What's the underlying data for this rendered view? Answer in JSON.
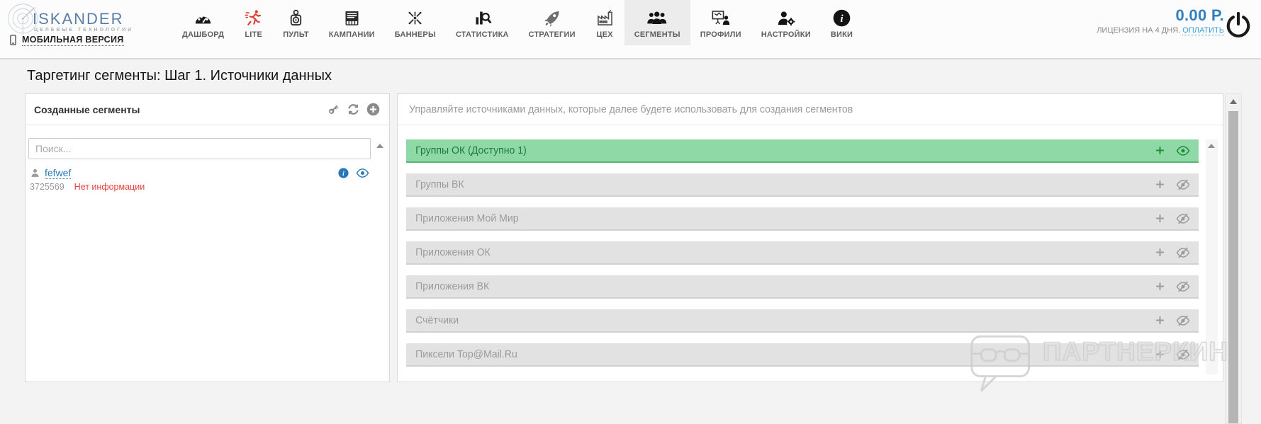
{
  "header": {
    "logo": {
      "title": "ISKANDER",
      "subtitle": "ЦЕЛЕВЫЕ ТЕХНОЛОГИИ",
      "mobile_link": "МОБИЛЬНАЯ ВЕРСИЯ"
    },
    "nav": [
      {
        "label": "ДАШБОРД",
        "icon": "gauge-icon",
        "active": false
      },
      {
        "label": "LITE",
        "icon": "runner-icon",
        "active": false
      },
      {
        "label": "ПУЛЬТ",
        "icon": "joystick-icon",
        "active": false
      },
      {
        "label": "КАМПАНИИ",
        "icon": "campaigns-icon",
        "active": false
      },
      {
        "label": "БАННЕРЫ",
        "icon": "banners-icon",
        "active": false
      },
      {
        "label": "СТАТИСТИКА",
        "icon": "statistics-icon",
        "active": false
      },
      {
        "label": "СТРАТЕГИИ",
        "icon": "rocket-icon",
        "active": false
      },
      {
        "label": "ЦЕХ",
        "icon": "factory-icon",
        "active": false
      },
      {
        "label": "СЕГМЕНТЫ",
        "icon": "segments-icon",
        "active": true
      },
      {
        "label": "ПРОФИЛИ",
        "icon": "profiles-icon",
        "active": false
      },
      {
        "label": "НАСТРОЙКИ",
        "icon": "settings-icon",
        "active": false
      },
      {
        "label": "ВИКИ",
        "icon": "wiki-icon",
        "active": false
      }
    ],
    "balance": "0.00 Р.",
    "license_text": "ЛИЦЕНЗИЯ НА 4 ДНЯ.",
    "pay_link": "ОПЛАТИТЬ"
  },
  "page_title": "Таргетинг сегменты: Шаг 1. Источники данных",
  "segments_panel": {
    "title": "Созданные сегменты",
    "search_placeholder": "Поиск...",
    "items": [
      {
        "name": "fefwef",
        "id": "3725569",
        "status": "Нет информации"
      }
    ]
  },
  "sources_panel": {
    "description": "Управляйте источниками данных, которые далее будете использовать для создания сегментов",
    "rows": [
      {
        "label": "Группы ОК (Доступно 1)",
        "enabled": true
      },
      {
        "label": "Группы ВК",
        "enabled": false
      },
      {
        "label": "Приложения Мой Мир",
        "enabled": false
      },
      {
        "label": "Приложения ОК",
        "enabled": false
      },
      {
        "label": "Приложения ВК",
        "enabled": false
      },
      {
        "label": "Счётчики",
        "enabled": false
      },
      {
        "label": "Пиксели Top@Mail.Ru",
        "enabled": false
      }
    ]
  },
  "watermark_text": "ПАРТНЕРКИН",
  "colors": {
    "accent_blue": "#2e7fc0",
    "link_blue": "#3aa0d8",
    "active_green_bg": "#8fd9a7",
    "active_green_text": "#1f7a3d",
    "disabled_gray_bg": "#e2e2e2",
    "error_red": "#e6433a",
    "lite_red": "#e0382c"
  }
}
